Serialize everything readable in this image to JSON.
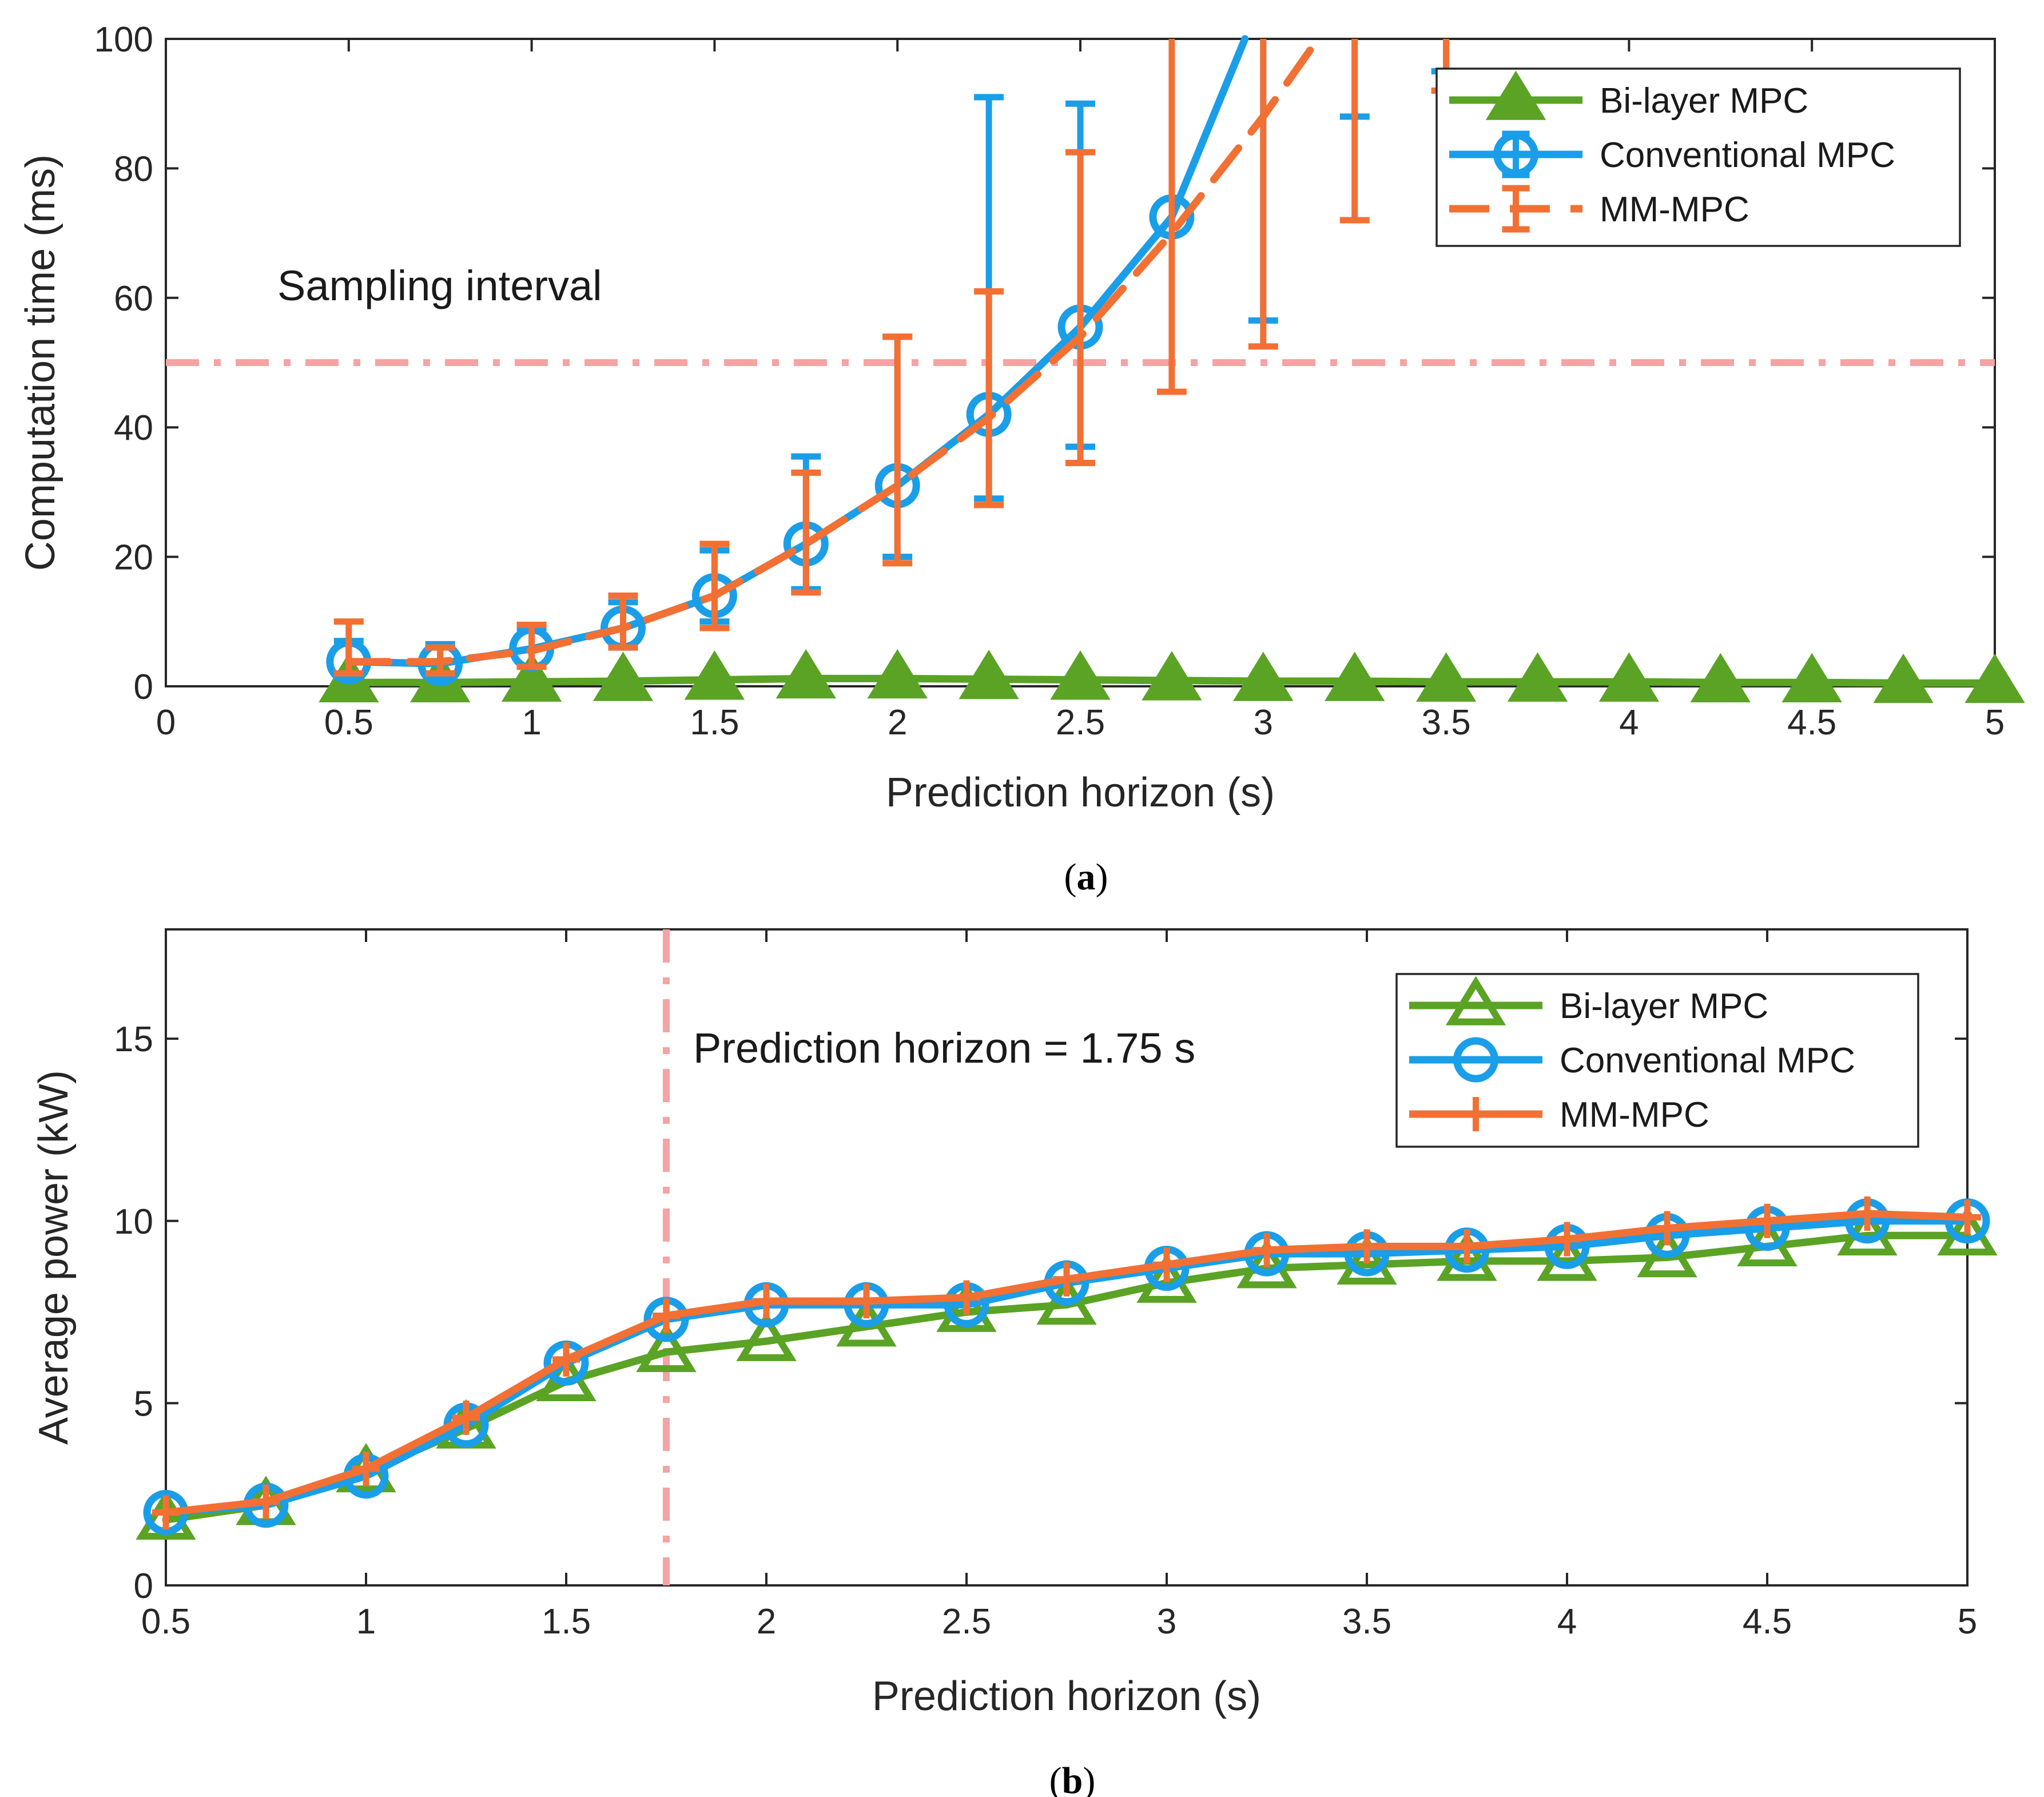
{
  "colors": {
    "bilayer": "#5aa324",
    "conventional": "#1a9ee8",
    "mm": "#f27033",
    "reference": "#f5a3a3",
    "axis": "#262626"
  },
  "chart_data": [
    {
      "panel": "a",
      "type": "line",
      "caption": {
        "open": "(",
        "letter": "a",
        "close": ")"
      },
      "xlabel": "Prediction horizon (s)",
      "ylabel": "Computation time (ms)",
      "xlim": [
        0,
        5
      ],
      "ylim": [
        0,
        100
      ],
      "xticks": [
        {
          "value": 0,
          "label": "0"
        },
        {
          "value": 0.5,
          "label": "0.5"
        },
        {
          "value": 1,
          "label": "1"
        },
        {
          "value": 1.5,
          "label": "1.5"
        },
        {
          "value": 2,
          "label": "2"
        },
        {
          "value": 2.5,
          "label": "2.5"
        },
        {
          "value": 3,
          "label": "3"
        },
        {
          "value": 3.5,
          "label": "3.5"
        },
        {
          "value": 4,
          "label": "4"
        },
        {
          "value": 4.5,
          "label": "4.5"
        },
        {
          "value": 5,
          "label": "5"
        }
      ],
      "yticks": [
        {
          "value": 0,
          "label": "0"
        },
        {
          "value": 20,
          "label": "20"
        },
        {
          "value": 40,
          "label": "40"
        },
        {
          "value": 60,
          "label": "60"
        },
        {
          "value": 80,
          "label": "80"
        },
        {
          "value": 100,
          "label": "100"
        }
      ],
      "reference_line": {
        "orientation": "horizontal",
        "value": 50,
        "label": "Sampling interval"
      },
      "legend": {
        "position": "top-right"
      },
      "series": [
        {
          "name": "Bi-layer MPC",
          "color_key": "bilayer",
          "marker": "triangle-filled",
          "dash": "solid",
          "x": [
            0.5,
            0.75,
            1,
            1.25,
            1.5,
            1.75,
            2,
            2.25,
            2.5,
            2.75,
            3,
            3.25,
            3.5,
            3.75,
            4,
            4.25,
            4.5,
            4.75,
            5
          ],
          "y": [
            0.6,
            0.6,
            0.7,
            0.8,
            1.0,
            1.2,
            1.2,
            1.1,
            1.0,
            0.9,
            0.8,
            0.8,
            0.7,
            0.7,
            0.7,
            0.6,
            0.6,
            0.5,
            0.5
          ]
        },
        {
          "name": "Conventional MPC",
          "color_key": "conventional",
          "marker": "circle",
          "dash": "solid",
          "x": [
            0.5,
            0.75,
            1,
            1.25,
            1.5,
            1.75,
            2,
            2.25,
            2.5,
            2.75,
            2.95
          ],
          "y": [
            3.8,
            3.5,
            5.8,
            9.0,
            14.0,
            22.0,
            31.0,
            42.0,
            55.5,
            72.5,
            100
          ],
          "marker_count": 10,
          "errorbars": [
            {
              "x": 0.5,
              "low": 1.5,
              "high": 7.0
            },
            {
              "x": 0.75,
              "low": 1.5,
              "high": 6.5
            },
            {
              "x": 1,
              "low": 3.0,
              "high": 9.0
            },
            {
              "x": 1.25,
              "low": 6.0,
              "high": 13.0
            },
            {
              "x": 1.5,
              "low": 10.0,
              "high": 21.0
            },
            {
              "x": 1.75,
              "low": 15.0,
              "high": 35.5
            },
            {
              "x": 2,
              "low": 20.0,
              "high": 54.0
            },
            {
              "x": 2.25,
              "low": 29.0,
              "high": 91.0
            },
            {
              "x": 2.5,
              "low": 37.0,
              "high": 90.0
            },
            {
              "x": 3,
              "low": 56.5,
              "high": 100
            },
            {
              "x": 3.25,
              "low": 88.0,
              "high": 100
            },
            {
              "x": 3.5,
              "low": 95.0,
              "high": 100
            }
          ]
        },
        {
          "name": "MM-MPC",
          "color_key": "mm",
          "marker": "none",
          "dash": "dashed",
          "x": [
            0.5,
            0.75,
            1,
            1.25,
            1.5,
            1.75,
            2,
            2.25,
            2.5,
            2.75,
            3,
            3.15
          ],
          "y": [
            3.8,
            3.8,
            5.5,
            9.0,
            14.0,
            22.0,
            31.0,
            41.5,
            54.0,
            70.0,
            88.0,
            100
          ],
          "errorbars": [
            {
              "x": 0.5,
              "low": 2.0,
              "high": 10.0
            },
            {
              "x": 0.75,
              "low": 2.0,
              "high": 6.0
            },
            {
              "x": 1,
              "low": 3.0,
              "high": 9.5
            },
            {
              "x": 1.25,
              "low": 6.0,
              "high": 14.0
            },
            {
              "x": 1.5,
              "low": 9.0,
              "high": 22.0
            },
            {
              "x": 1.75,
              "low": 14.5,
              "high": 33.0
            },
            {
              "x": 2,
              "low": 19.0,
              "high": 54.0
            },
            {
              "x": 2.25,
              "low": 28.0,
              "high": 61.0
            },
            {
              "x": 2.5,
              "low": 34.5,
              "high": 82.5
            },
            {
              "x": 2.75,
              "low": 45.5,
              "high": 100
            },
            {
              "x": 3,
              "low": 52.5,
              "high": 100
            },
            {
              "x": 3.25,
              "low": 72.0,
              "high": 100
            },
            {
              "x": 3.5,
              "low": 92.0,
              "high": 100
            }
          ]
        }
      ]
    },
    {
      "panel": "b",
      "type": "line",
      "caption": {
        "open": "(",
        "letter": "b",
        "close": ")"
      },
      "xlabel": "Prediction horizon (s)",
      "ylabel": "Average power (kW)",
      "xlim": [
        0.5,
        5
      ],
      "ylim": [
        0,
        18
      ],
      "xticks": [
        {
          "value": 0.5,
          "label": "0.5"
        },
        {
          "value": 1,
          "label": "1"
        },
        {
          "value": 1.5,
          "label": "1.5"
        },
        {
          "value": 2,
          "label": "2"
        },
        {
          "value": 2.5,
          "label": "2.5"
        },
        {
          "value": 3,
          "label": "3"
        },
        {
          "value": 3.5,
          "label": "3.5"
        },
        {
          "value": 4,
          "label": "4"
        },
        {
          "value": 4.5,
          "label": "4.5"
        },
        {
          "value": 5,
          "label": "5"
        }
      ],
      "yticks": [
        {
          "value": 0,
          "label": "0"
        },
        {
          "value": 5,
          "label": "5"
        },
        {
          "value": 10,
          "label": "10"
        },
        {
          "value": 15,
          "label": "15"
        }
      ],
      "reference_line": {
        "orientation": "vertical",
        "value": 1.75,
        "label": "Prediction horizon = 1.75 s"
      },
      "legend": {
        "position": "top-right"
      },
      "series": [
        {
          "name": "Bi-layer MPC",
          "color_key": "bilayer",
          "marker": "triangle-open",
          "dash": "solid",
          "x": [
            0.5,
            0.75,
            1,
            1.25,
            1.5,
            1.75,
            2,
            2.25,
            2.5,
            2.75,
            3,
            3.25,
            3.5,
            3.75,
            4,
            4.25,
            4.5,
            4.75,
            5
          ],
          "y": [
            1.8,
            2.2,
            3.1,
            4.3,
            5.6,
            6.4,
            6.7,
            7.1,
            7.5,
            7.7,
            8.3,
            8.7,
            8.8,
            8.9,
            8.9,
            9.0,
            9.3,
            9.6,
            9.6
          ]
        },
        {
          "name": "Conventional MPC",
          "color_key": "conventional",
          "marker": "circle",
          "dash": "solid",
          "x": [
            0.5,
            0.75,
            1,
            1.25,
            1.5,
            1.75,
            2,
            2.25,
            2.5,
            2.75,
            3,
            3.25,
            3.5,
            3.75,
            4,
            4.25,
            4.5,
            4.75,
            5
          ],
          "y": [
            2.0,
            2.2,
            3.0,
            4.4,
            6.1,
            7.3,
            7.7,
            7.7,
            7.7,
            8.3,
            8.7,
            9.1,
            9.1,
            9.2,
            9.3,
            9.6,
            9.8,
            10.0,
            10.0
          ]
        },
        {
          "name": "MM-MPC",
          "color_key": "mm",
          "marker": "plus",
          "dash": "solid",
          "x": [
            0.5,
            0.75,
            1,
            1.25,
            1.5,
            1.75,
            2,
            2.25,
            2.5,
            2.75,
            3,
            3.25,
            3.5,
            3.75,
            4,
            4.25,
            4.5,
            4.75,
            5
          ],
          "y": [
            2.0,
            2.3,
            3.2,
            4.6,
            6.2,
            7.4,
            7.8,
            7.8,
            7.9,
            8.4,
            8.8,
            9.2,
            9.3,
            9.3,
            9.5,
            9.8,
            10.0,
            10.2,
            10.1
          ]
        }
      ]
    }
  ]
}
